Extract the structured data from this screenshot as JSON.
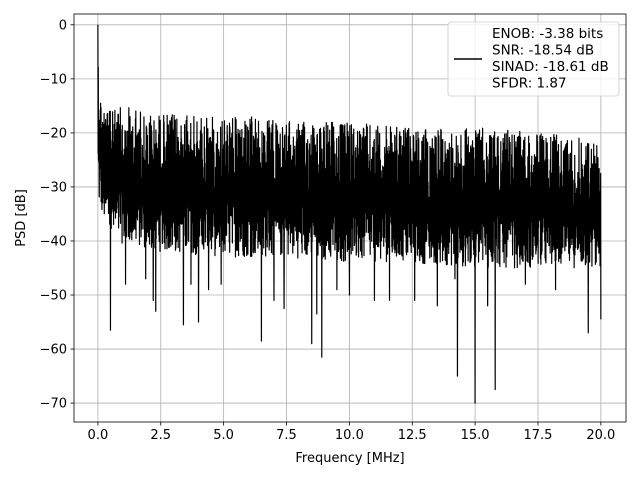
{
  "chart_data": {
    "type": "line",
    "xlabel": "Frequency [MHz]",
    "ylabel": "PSD [dB]",
    "xlim": [
      -0.95,
      21.0
    ],
    "ylim": [
      -73.5,
      2.0
    ],
    "x_ticks": [
      0.0,
      2.5,
      5.0,
      7.5,
      10.0,
      12.5,
      15.0,
      17.5,
      20.0
    ],
    "x_tick_labels": [
      "0.0",
      "2.5",
      "5.0",
      "7.5",
      "10.0",
      "12.5",
      "15.0",
      "17.5",
      "20.0"
    ],
    "y_ticks": [
      0,
      -10,
      -20,
      -30,
      -40,
      -50,
      -60,
      -70
    ],
    "y_tick_labels": [
      "0",
      "−10",
      "−20",
      "−30",
      "−40",
      "−50",
      "−60",
      "−70"
    ],
    "grid": true,
    "legend_position": "top-right",
    "legend": [
      "ENOB: -3.38 bits",
      "SNR: -18.54 dB",
      "SINAD: -18.61 dB",
      "SFDR: 1.87"
    ],
    "series": [
      {
        "color": "#000000",
        "x_range": [
          0.0,
          20.0
        ],
        "peak": {
          "x": 0.0,
          "y": 0.0
        },
        "upper_envelope": [
          [
            0.0,
            0.0
          ],
          [
            0.05,
            -9
          ],
          [
            0.1,
            -12
          ],
          [
            0.2,
            -14
          ],
          [
            0.5,
            -16
          ],
          [
            1.0,
            -15
          ],
          [
            2.0,
            -16
          ],
          [
            4.0,
            -17
          ],
          [
            6.0,
            -17
          ],
          [
            8.0,
            -18
          ],
          [
            10.0,
            -18
          ],
          [
            12.0,
            -19
          ],
          [
            15.0,
            -19
          ],
          [
            17.5,
            -20
          ],
          [
            20.0,
            -21
          ]
        ],
        "lower_envelope": [
          [
            0.0,
            -33
          ],
          [
            0.5,
            -40
          ],
          [
            2.5,
            -42
          ],
          [
            5.0,
            -43
          ],
          [
            7.5,
            -43
          ],
          [
            10.0,
            -44
          ],
          [
            12.5,
            -44
          ],
          [
            15.0,
            -45
          ],
          [
            17.5,
            -45
          ],
          [
            20.0,
            -45
          ]
        ],
        "deep_notches": [
          [
            0.5,
            -56.5
          ],
          [
            1.1,
            -48
          ],
          [
            1.9,
            -47
          ],
          [
            2.2,
            -51
          ],
          [
            2.3,
            -53
          ],
          [
            3.4,
            -55.5
          ],
          [
            3.7,
            -48
          ],
          [
            4.0,
            -55
          ],
          [
            4.4,
            -49
          ],
          [
            4.9,
            -48
          ],
          [
            6.5,
            -58.5
          ],
          [
            7.0,
            -51
          ],
          [
            7.4,
            -52.5
          ],
          [
            8.5,
            -59
          ],
          [
            8.7,
            -53.5
          ],
          [
            8.9,
            -61.5
          ],
          [
            9.5,
            -49
          ],
          [
            10.0,
            -50
          ],
          [
            11.0,
            -51
          ],
          [
            11.6,
            -51
          ],
          [
            12.6,
            -51
          ],
          [
            13.5,
            -52
          ],
          [
            14.2,
            -47
          ],
          [
            14.3,
            -65
          ],
          [
            15.0,
            -70
          ],
          [
            15.5,
            -52
          ],
          [
            15.8,
            -67.5
          ],
          [
            17.0,
            -48
          ],
          [
            18.2,
            -49
          ],
          [
            19.5,
            -57
          ],
          [
            20.0,
            -54.5
          ]
        ]
      }
    ]
  }
}
